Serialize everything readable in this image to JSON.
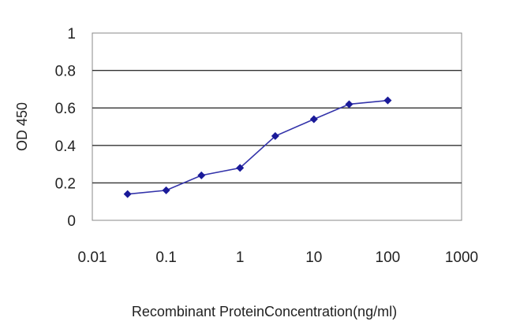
{
  "chart_data": {
    "type": "line",
    "xscale": "log",
    "xlim": [
      0.01,
      1000
    ],
    "ylim": [
      0,
      1
    ],
    "xticks": [
      0.01,
      0.1,
      1,
      10,
      100,
      1000
    ],
    "xtick_labels": [
      "0.01",
      "0.1",
      "1",
      "10",
      "100",
      "1000"
    ],
    "yticks": [
      0,
      0.2,
      0.4,
      0.6,
      0.8,
      1
    ],
    "ytick_labels": [
      "0",
      "0.2",
      "0.4",
      "0.6",
      "0.8",
      "1"
    ],
    "xlabel": "Recombinant ProteinConcentration(ng/ml)",
    "ylabel": "OD 450",
    "grid": "horizontal",
    "legend": "none",
    "series": [
      {
        "x": [
          0.03,
          0.1,
          0.3,
          1,
          3,
          10,
          30,
          100
        ],
        "y": [
          0.14,
          0.16,
          0.24,
          0.28,
          0.45,
          0.54,
          0.62,
          0.64
        ]
      }
    ],
    "colors": {
      "line": "#3333aa",
      "marker": "#1a1a99",
      "grid": "#333333",
      "frame": "#888888"
    }
  }
}
